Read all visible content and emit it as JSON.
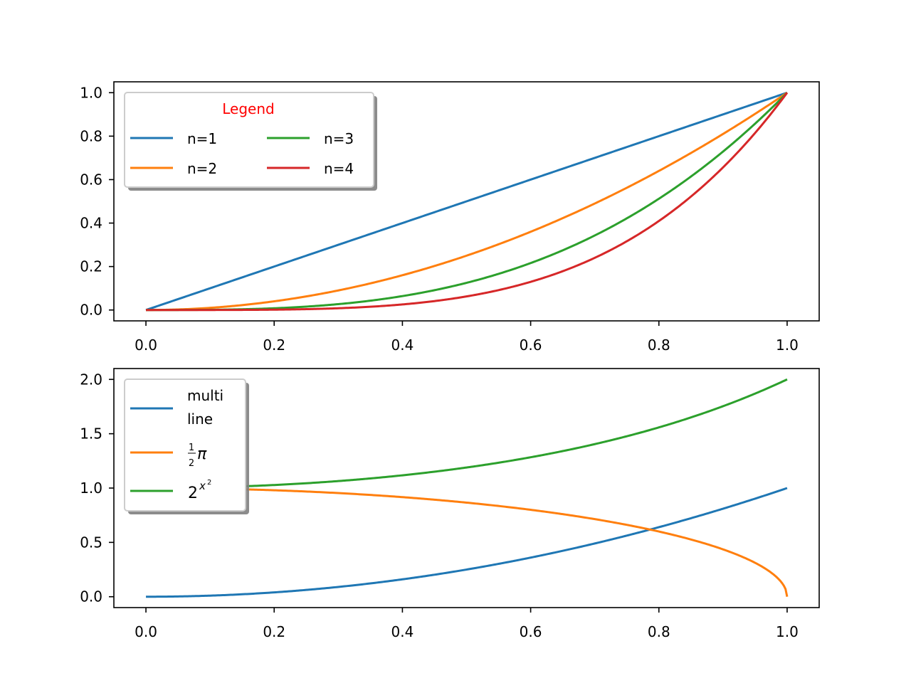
{
  "chart_data": [
    {
      "type": "line",
      "xlim": [
        -0.05,
        1.05
      ],
      "ylim": [
        -0.05,
        1.05
      ],
      "xticks": [
        "0.0",
        "0.2",
        "0.4",
        "0.6",
        "0.8",
        "1.0"
      ],
      "yticks": [
        "0.0",
        "0.2",
        "0.4",
        "0.6",
        "0.8",
        "1.0"
      ],
      "grid": false,
      "legend": {
        "title": "Legend",
        "title_color": "#ff0000",
        "placement": "upper-left",
        "columns": 2,
        "shadow": true
      },
      "series": [
        {
          "name": "n=1",
          "function": "x^1",
          "color": "#1f77b4",
          "x": [
            0,
            0.2,
            0.4,
            0.6,
            0.8,
            1.0
          ],
          "y": [
            0,
            0.2,
            0.4,
            0.6,
            0.8,
            1.0
          ]
        },
        {
          "name": "n=2",
          "function": "x^2",
          "color": "#ff7f0e",
          "x": [
            0,
            0.2,
            0.4,
            0.6,
            0.8,
            1.0
          ],
          "y": [
            0,
            0.04,
            0.16,
            0.36,
            0.64,
            1.0
          ]
        },
        {
          "name": "n=3",
          "function": "x^3",
          "color": "#2ca02c",
          "x": [
            0,
            0.2,
            0.4,
            0.6,
            0.8,
            1.0
          ],
          "y": [
            0,
            0.008,
            0.064,
            0.216,
            0.512,
            1.0
          ]
        },
        {
          "name": "n=4",
          "function": "x^4",
          "color": "#d62728",
          "x": [
            0,
            0.2,
            0.4,
            0.6,
            0.8,
            1.0
          ],
          "y": [
            0,
            0.0016,
            0.0256,
            0.1296,
            0.4096,
            1.0
          ]
        }
      ]
    },
    {
      "type": "line",
      "xlim": [
        -0.05,
        1.05
      ],
      "ylim": [
        -0.1,
        2.1
      ],
      "xticks": [
        "0.0",
        "0.2",
        "0.4",
        "0.6",
        "0.8",
        "1.0"
      ],
      "yticks": [
        "0.0",
        "0.5",
        "1.0",
        "1.5",
        "2.0"
      ],
      "grid": false,
      "legend": {
        "placement": "upper-left",
        "shadow": true
      },
      "series": [
        {
          "name": "multi\nline",
          "function": "x^2",
          "color": "#1f77b4",
          "x": [
            0,
            0.2,
            0.4,
            0.6,
            0.8,
            1.0
          ],
          "y": [
            0,
            0.04,
            0.16,
            0.36,
            0.64,
            1.0
          ]
        },
        {
          "name": "½π",
          "label_parts": {
            "num": "1",
            "den": "2",
            "sym": "π"
          },
          "function": "sqrt(1-x^2)",
          "color": "#ff7f0e",
          "x": [
            0,
            0.2,
            0.4,
            0.6,
            0.8,
            1.0
          ],
          "y": [
            1.0,
            0.98,
            0.917,
            0.8,
            0.6,
            0.0
          ]
        },
        {
          "name": "2^(x^2)",
          "label_parts": {
            "base": "2",
            "exp": "x",
            "exp2": "2"
          },
          "function": "2^(x^2)",
          "color": "#2ca02c",
          "x": [
            0,
            0.2,
            0.4,
            0.6,
            0.8,
            1.0
          ],
          "y": [
            1.0,
            1.028,
            1.117,
            1.284,
            1.558,
            2.0
          ]
        }
      ]
    }
  ]
}
